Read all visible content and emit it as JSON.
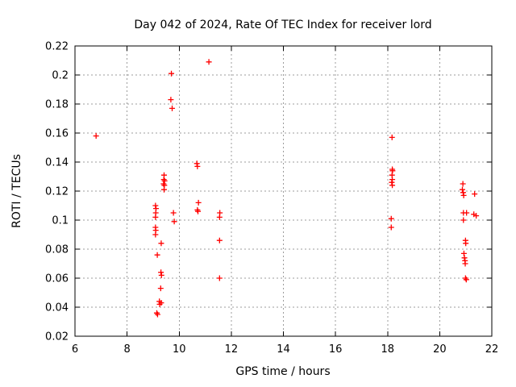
{
  "figure": {
    "background_color": "#ffffff",
    "text_color": "#000000",
    "grid_color": "#9c9c9c",
    "border_color": "#000000"
  },
  "chart_data": {
    "type": "scatter",
    "title": "Day 042 of 2024, Rate Of TEC Index for receiver lord",
    "xlabel": "GPS time / hours",
    "ylabel": "ROTI / TECUs",
    "xlim": [
      6,
      22
    ],
    "ylim": [
      0.02,
      0.22
    ],
    "xtick_values": [
      6,
      8,
      10,
      12,
      14,
      16,
      18,
      20,
      22
    ],
    "xtick_labels": [
      "6",
      "8",
      "10",
      "12",
      "14",
      "16",
      "18",
      "20",
      "22"
    ],
    "ytick_values": [
      0.02,
      0.04,
      0.06,
      0.08,
      0.1,
      0.12,
      0.14,
      0.16,
      0.18,
      0.2,
      0.22
    ],
    "ytick_labels": [
      "0.02",
      "0.04",
      "0.06",
      "0.08",
      "0.1",
      "0.12",
      "0.14",
      "0.16",
      "0.18",
      "0.2",
      "0.22"
    ],
    "grid": true,
    "legend": "none",
    "marker": "plus",
    "marker_color": "#ff0000",
    "series": [
      {
        "name": "ROTI",
        "points": [
          [
            6.81,
            0.158
          ],
          [
            9.09,
            0.11
          ],
          [
            9.11,
            0.108
          ],
          [
            9.1,
            0.105
          ],
          [
            9.09,
            0.102
          ],
          [
            9.09,
            0.095
          ],
          [
            9.1,
            0.093
          ],
          [
            9.09,
            0.09
          ],
          [
            9.16,
            0.076
          ],
          [
            9.24,
            0.044
          ],
          [
            9.31,
            0.043
          ],
          [
            9.25,
            0.042
          ],
          [
            9.14,
            0.036
          ],
          [
            9.17,
            0.035
          ],
          [
            9.31,
            0.084
          ],
          [
            9.3,
            0.064
          ],
          [
            9.32,
            0.062
          ],
          [
            9.29,
            0.053
          ],
          [
            9.42,
            0.131
          ],
          [
            9.41,
            0.128
          ],
          [
            9.44,
            0.127
          ],
          [
            9.4,
            0.125
          ],
          [
            9.43,
            0.124
          ],
          [
            9.42,
            0.121
          ],
          [
            9.7,
            0.201
          ],
          [
            9.68,
            0.183
          ],
          [
            9.73,
            0.177
          ],
          [
            9.78,
            0.105
          ],
          [
            9.81,
            0.099
          ],
          [
            10.68,
            0.139
          ],
          [
            10.7,
            0.137
          ],
          [
            10.74,
            0.112
          ],
          [
            10.7,
            0.107
          ],
          [
            10.72,
            0.106
          ],
          [
            11.14,
            0.209
          ],
          [
            11.56,
            0.105
          ],
          [
            11.55,
            0.102
          ],
          [
            11.55,
            0.086
          ],
          [
            11.55,
            0.06
          ],
          [
            18.17,
            0.157
          ],
          [
            18.18,
            0.135
          ],
          [
            18.19,
            0.134
          ],
          [
            18.17,
            0.131
          ],
          [
            18.18,
            0.128
          ],
          [
            18.16,
            0.126
          ],
          [
            18.18,
            0.124
          ],
          [
            18.14,
            0.101
          ],
          [
            18.14,
            0.095
          ],
          [
            20.89,
            0.125
          ],
          [
            20.87,
            0.121
          ],
          [
            20.9,
            0.119
          ],
          [
            20.92,
            0.117
          ],
          [
            21.34,
            0.118
          ],
          [
            20.91,
            0.105
          ],
          [
            21.03,
            0.105
          ],
          [
            21.31,
            0.104
          ],
          [
            21.4,
            0.103
          ],
          [
            20.91,
            0.1
          ],
          [
            20.99,
            0.086
          ],
          [
            21.0,
            0.084
          ],
          [
            20.93,
            0.077
          ],
          [
            20.95,
            0.074
          ],
          [
            20.97,
            0.072
          ],
          [
            20.98,
            0.07
          ],
          [
            20.99,
            0.06
          ],
          [
            21.02,
            0.059
          ]
        ]
      }
    ]
  }
}
